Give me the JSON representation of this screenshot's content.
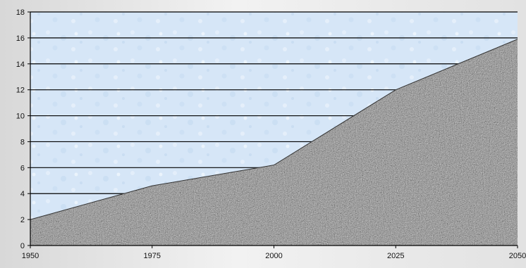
{
  "chart_data": {
    "type": "area",
    "title": "",
    "xlabel": "",
    "ylabel": "",
    "x": [
      1950,
      1975,
      2000,
      2025,
      2050
    ],
    "xticks": [
      "1950",
      "1975",
      "2000",
      "2025",
      "2050"
    ],
    "xlim": [
      1950,
      2050
    ],
    "ylim": [
      0,
      18
    ],
    "yticks": [
      0,
      2,
      4,
      6,
      8,
      10,
      12,
      14,
      16,
      18
    ],
    "grid": "horizontal",
    "legend": "none",
    "series": [
      {
        "name": "",
        "x": [
          1950,
          1975,
          2000,
          2025,
          2050
        ],
        "values": [
          2,
          4.6,
          6.2,
          12,
          15.9
        ]
      }
    ],
    "colors": {
      "plot_background": "#dbe9f8",
      "area_fill": "#8a8a8a",
      "gridline": "#000000",
      "axis": "#000000"
    }
  }
}
